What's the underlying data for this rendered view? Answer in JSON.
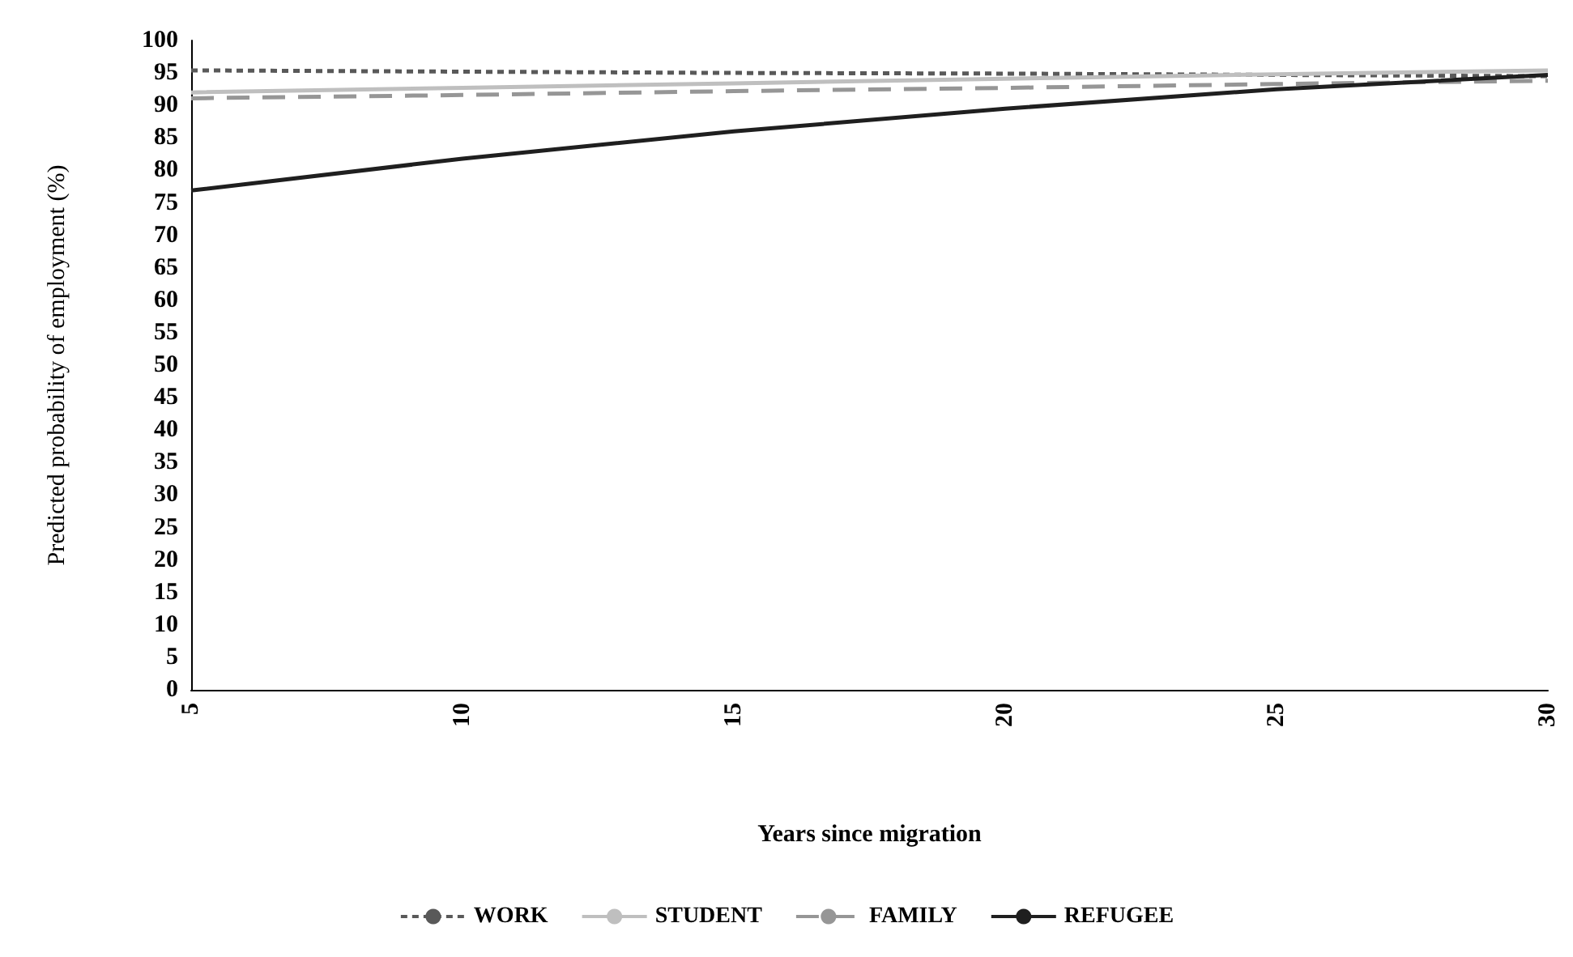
{
  "chart_data": {
    "type": "line",
    "xlabel": "Years since migration",
    "ylabel": "Predicted probability of employment (%)",
    "x": [
      5,
      10,
      15,
      20,
      25,
      30
    ],
    "xlim": [
      5,
      30
    ],
    "xticks": [
      5,
      10,
      15,
      20,
      25,
      30
    ],
    "ylim": [
      0,
      100
    ],
    "yticks": [
      0,
      5,
      10,
      15,
      20,
      25,
      30,
      35,
      40,
      45,
      50,
      55,
      60,
      65,
      70,
      75,
      80,
      85,
      90,
      95,
      100
    ],
    "grid": false,
    "legend": "bottom",
    "marker": "none",
    "series": [
      {
        "name": "WORK",
        "color": "#595959",
        "line_style": "dashed",
        "values": [
          95.4,
          95.2,
          95.0,
          94.9,
          94.7,
          94.5
        ]
      },
      {
        "name": "STUDENT",
        "color": "#bfbfbf",
        "line_style": "solid",
        "values": [
          92.0,
          92.7,
          93.4,
          94.1,
          94.8,
          95.4
        ]
      },
      {
        "name": "FAMILY",
        "color": "#969696",
        "line_style": "longdash",
        "values": [
          91.1,
          91.6,
          92.2,
          92.7,
          93.3,
          93.8
        ]
      },
      {
        "name": "REFUGEE",
        "color": "#1f1f1f",
        "line_style": "solid",
        "values": [
          76.9,
          81.8,
          86.0,
          89.5,
          92.5,
          94.7
        ]
      }
    ]
  }
}
